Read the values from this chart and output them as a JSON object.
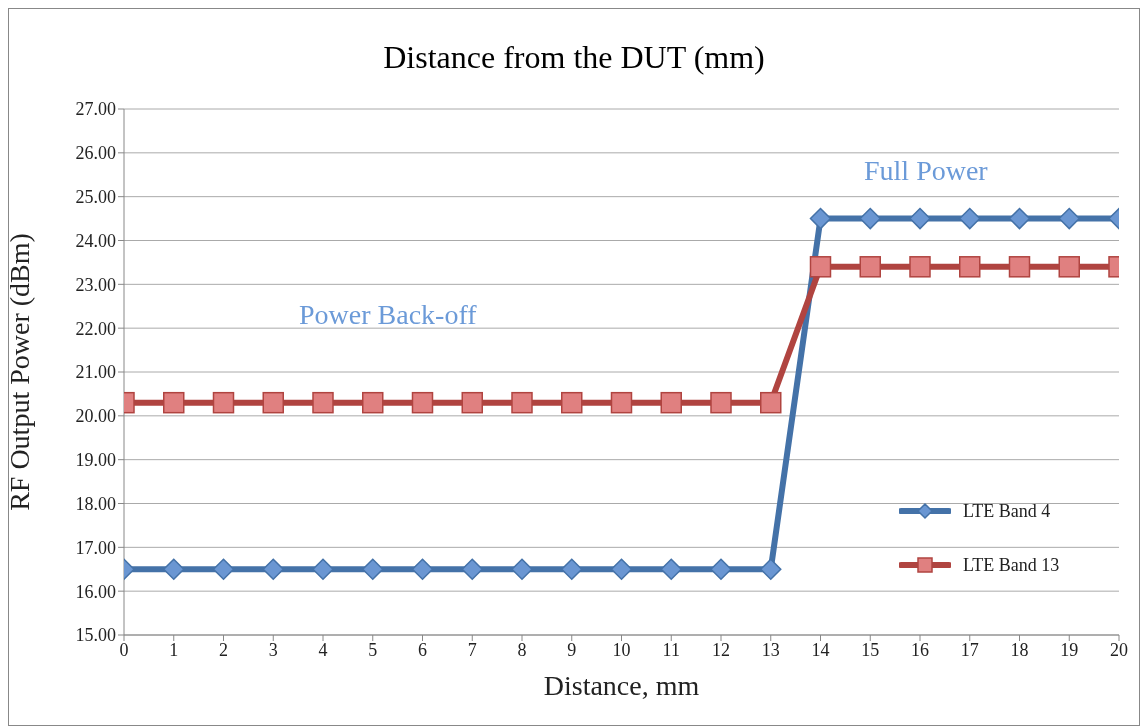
{
  "chart_data": {
    "type": "line",
    "title": "Distance from the DUT (mm)",
    "xlabel": "Distance, mm",
    "ylabel": "RF Output Power (dBm)",
    "x": [
      0,
      1,
      2,
      3,
      4,
      5,
      6,
      7,
      8,
      9,
      10,
      11,
      12,
      13,
      14,
      15,
      16,
      17,
      18,
      19,
      20
    ],
    "series": [
      {
        "name": "LTE Band 4",
        "color": "#4472a8",
        "marker": "diamond",
        "values": [
          16.5,
          16.5,
          16.5,
          16.5,
          16.5,
          16.5,
          16.5,
          16.5,
          16.5,
          16.5,
          16.5,
          16.5,
          16.5,
          16.5,
          24.5,
          24.5,
          24.5,
          24.5,
          24.5,
          24.5,
          24.5
        ]
      },
      {
        "name": "LTE Band 13",
        "color": "#b04440",
        "marker": "square",
        "values": [
          20.3,
          20.3,
          20.3,
          20.3,
          20.3,
          20.3,
          20.3,
          20.3,
          20.3,
          20.3,
          20.3,
          20.3,
          20.3,
          20.3,
          23.4,
          23.4,
          23.4,
          23.4,
          23.4,
          23.4,
          23.4
        ]
      }
    ],
    "xlim": [
      0,
      20
    ],
    "xticks": [
      0,
      1,
      2,
      3,
      4,
      5,
      6,
      7,
      8,
      9,
      10,
      11,
      12,
      13,
      14,
      15,
      16,
      17,
      18,
      19,
      20
    ],
    "ylim": [
      15,
      27
    ],
    "yticks": [
      {
        "value": 15,
        "label": "15.00"
      },
      {
        "value": 16,
        "label": "16.00"
      },
      {
        "value": 17,
        "label": "17.00"
      },
      {
        "value": 18,
        "label": "18.00"
      },
      {
        "value": 19,
        "label": "19.00"
      },
      {
        "value": 20,
        "label": "20.00"
      },
      {
        "value": 21,
        "label": "21.00"
      },
      {
        "value": 22,
        "label": "22.00"
      },
      {
        "value": 23,
        "label": "23.00"
      },
      {
        "value": 24,
        "label": "24.00"
      },
      {
        "value": 25,
        "label": "25.00"
      },
      {
        "value": 26,
        "label": "26.00"
      },
      {
        "value": 27,
        "label": "27.00"
      }
    ],
    "grid": "y",
    "legend": "bottom right",
    "line_style": "solid",
    "annotations": [
      "Power Back-off",
      "Full Power"
    ]
  }
}
